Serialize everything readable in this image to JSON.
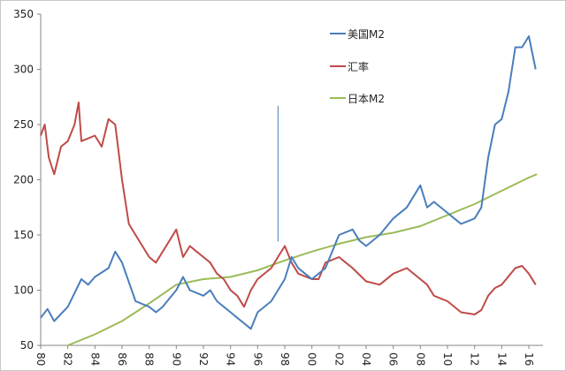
{
  "chart_data": {
    "type": "line",
    "title": "",
    "xlabel": "",
    "ylabel": "",
    "xlim": [
      1980,
      2017
    ],
    "ylim": [
      50,
      350
    ],
    "yticks": [
      50,
      100,
      150,
      200,
      250,
      300,
      350
    ],
    "xtick_labels": [
      "80",
      "82",
      "84",
      "86",
      "88",
      "90",
      "92",
      "94",
      "96",
      "98",
      "00",
      "02",
      "04",
      "06",
      "08",
      "10",
      "12",
      "14",
      "16"
    ],
    "grid": false,
    "legend_position": "top-center",
    "series": [
      {
        "name": "美国M2",
        "color": "#4a7ebb",
        "x": [
          1980,
          1980.5,
          1981,
          1982,
          1983,
          1983.5,
          1984,
          1985,
          1985.5,
          1986,
          1987,
          1988,
          1988.5,
          1989,
          1990,
          1990.5,
          1991,
          1992,
          1992.5,
          1993,
          1994,
          1994.5,
          1995,
          1995.5,
          1996,
          1997,
          1998,
          1998.5,
          1999,
          1999.5,
          2000,
          2001,
          2002,
          2003,
          2003.5,
          2004,
          2005,
          2006,
          2007,
          2008,
          2008.5,
          2009,
          2010,
          2010.5,
          2011,
          2012,
          2012.5,
          2013,
          2013.5,
          2014,
          2014.5,
          2015,
          2015.5,
          2016,
          2016.5
        ],
        "y": [
          75,
          83,
          72,
          85,
          110,
          105,
          112,
          120,
          135,
          125,
          90,
          85,
          80,
          85,
          100,
          112,
          100,
          95,
          100,
          90,
          80,
          75,
          70,
          65,
          80,
          90,
          110,
          130,
          120,
          115,
          110,
          120,
          150,
          155,
          145,
          140,
          150,
          165,
          175,
          195,
          175,
          180,
          170,
          165,
          160,
          165,
          175,
          220,
          250,
          255,
          280,
          320,
          320,
          330,
          300
        ]
      },
      {
        "name": "汇率",
        "color": "#be4b48",
        "x": [
          1980,
          1980.3,
          1980.6,
          1981,
          1981.5,
          1982,
          1982.5,
          1982.8,
          1983,
          1984,
          1984.5,
          1985,
          1985.5,
          1986,
          1986.5,
          1987,
          1987.5,
          1988,
          1988.5,
          1989,
          1989.5,
          1990,
          1990.5,
          1991,
          1991.5,
          1992,
          1992.5,
          1993,
          1993.5,
          1994,
          1994.5,
          1995,
          1995.5,
          1996,
          1997,
          1997.5,
          1998,
          1998.5,
          1999,
          2000,
          2000.5,
          2001,
          2002,
          2002.5,
          2003,
          2004,
          2005,
          2006,
          2007,
          2008,
          2008.5,
          2009,
          2010,
          2011,
          2012,
          2012.5,
          2013,
          2013.5,
          2014,
          2015,
          2015.5,
          2016,
          2016.5
        ],
        "y": [
          240,
          250,
          220,
          205,
          230,
          235,
          250,
          270,
          235,
          240,
          230,
          255,
          250,
          200,
          160,
          150,
          140,
          130,
          125,
          135,
          145,
          155,
          130,
          140,
          135,
          130,
          125,
          115,
          110,
          100,
          95,
          85,
          100,
          110,
          120,
          130,
          140,
          125,
          115,
          110,
          110,
          125,
          130,
          125,
          120,
          108,
          105,
          115,
          120,
          110,
          105,
          95,
          90,
          80,
          78,
          82,
          95,
          102,
          105,
          120,
          122,
          115,
          105
        ]
      },
      {
        "name": "日本M2",
        "color": "#9bbb59",
        "x": [
          1982,
          1984,
          1986,
          1988,
          1990,
          1992,
          1994,
          1996,
          1998,
          2000,
          2002,
          2004,
          2006,
          2008,
          2010,
          2012,
          2014,
          2016,
          2016.6
        ],
        "y": [
          50,
          60,
          72,
          88,
          105,
          110,
          112,
          118,
          127,
          135,
          142,
          148,
          152,
          158,
          168,
          178,
          190,
          202,
          205
        ]
      }
    ],
    "annotations": [
      {
        "type": "vertical-line",
        "x": 1997.5,
        "y_range": [
          144,
          267
        ],
        "color": "#4a7ebb"
      }
    ]
  }
}
